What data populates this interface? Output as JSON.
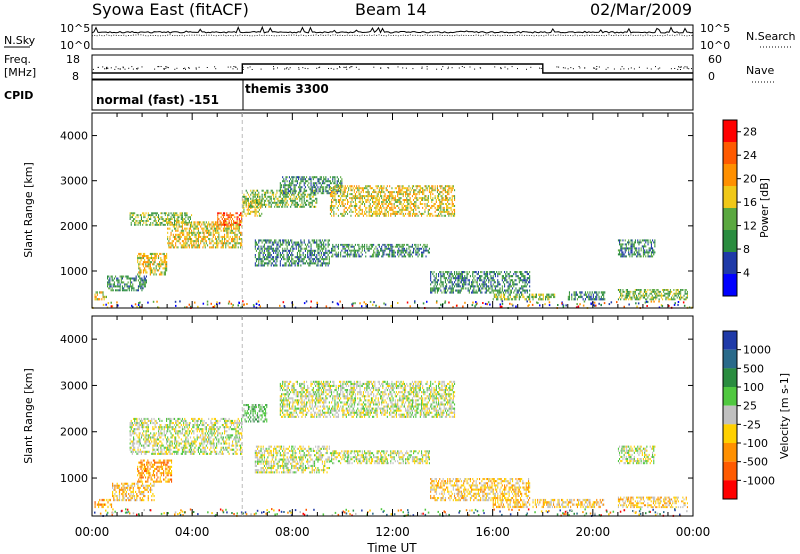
{
  "header": {
    "title_left": "Syowa East (fitACF)",
    "title_center": "Beam 14",
    "title_right": "02/Mar/2009"
  },
  "nsky_panel": {
    "label": "N.Sky",
    "right_label": "N.Search",
    "tick_top": "10^5",
    "tick_bottom": "10^0",
    "right_tick_top": "10^5",
    "right_tick_bottom": "10^0"
  },
  "freq_panel": {
    "label_line1": "Freq.",
    "label_line2": "[MHz]",
    "tick_top": "18",
    "tick_bottom": "8",
    "right_label": "Nave",
    "right_tick_top": "60",
    "right_tick_bottom": "0"
  },
  "cpid_panel": {
    "label": "CPID",
    "segments": [
      {
        "start_hour": 0,
        "end_hour": 6,
        "text": "normal (fast) -151"
      },
      {
        "start_hour": 6,
        "end_hour": 24,
        "text": "themis 3300"
      }
    ]
  },
  "colors": {
    "power": [
      "#0000ff",
      "#1f3aa8",
      "#2a8c3f",
      "#5aa840",
      "#f0c818",
      "#ff9000",
      "#ff5a00",
      "#ff0000"
    ],
    "velocity": [
      "#1f3aa8",
      "#2a6a8a",
      "#2a8c3f",
      "#50c840",
      "#c0c0c0",
      "#ffd000",
      "#ff9000",
      "#ff5a00",
      "#ff0000"
    ]
  },
  "chart_data": [
    {
      "type": "heatmap",
      "name": "power",
      "ylabel": "Slant Range [km]",
      "ylim": [
        180,
        4500
      ],
      "xlim": [
        0,
        24
      ],
      "yticks": [
        1000,
        2000,
        3000,
        4000
      ],
      "colorbar": {
        "label": "Power [dB]",
        "ticks": [
          "4",
          "8",
          "12",
          "16",
          "20",
          "24",
          "28"
        ],
        "range": [
          0,
          30
        ]
      },
      "regions": [
        {
          "t0": 0.1,
          "t1": 0.6,
          "r0": 350,
          "r1": 550,
          "level": 4
        },
        {
          "t0": 0.6,
          "t1": 2.2,
          "r0": 550,
          "r1": 900,
          "level": 2
        },
        {
          "t0": 1.8,
          "t1": 3.0,
          "r0": 900,
          "r1": 1400,
          "level": 4
        },
        {
          "t0": 1.5,
          "t1": 4.0,
          "r0": 2000,
          "r1": 2300,
          "level": 3
        },
        {
          "t0": 3.0,
          "t1": 6.0,
          "r0": 1500,
          "r1": 2100,
          "level": 4
        },
        {
          "t0": 5.0,
          "t1": 6.0,
          "r0": 2000,
          "r1": 2300,
          "level": 6
        },
        {
          "t0": 6.0,
          "t1": 6.8,
          "r0": 2200,
          "r1": 2600,
          "level": 4
        },
        {
          "t0": 6.5,
          "t1": 9.5,
          "r0": 1100,
          "r1": 1700,
          "level": 2
        },
        {
          "t0": 6.0,
          "t1": 9.0,
          "r0": 2400,
          "r1": 2800,
          "level": 3
        },
        {
          "t0": 7.5,
          "t1": 10.0,
          "r0": 2700,
          "r1": 3100,
          "level": 2
        },
        {
          "t0": 9.5,
          "t1": 14.5,
          "r0": 2200,
          "r1": 2900,
          "level": 4
        },
        {
          "t0": 9.5,
          "t1": 13.5,
          "r0": 1300,
          "r1": 1600,
          "level": 2
        },
        {
          "t0": 13.5,
          "t1": 17.5,
          "r0": 500,
          "r1": 1000,
          "level": 2
        },
        {
          "t0": 16.0,
          "t1": 18.5,
          "r0": 350,
          "r1": 500,
          "level": 3
        },
        {
          "t0": 19.0,
          "t1": 20.5,
          "r0": 350,
          "r1": 550,
          "level": 2
        },
        {
          "t0": 21.0,
          "t1": 22.5,
          "r0": 1300,
          "r1": 1700,
          "level": 2
        },
        {
          "t0": 21.0,
          "t1": 23.8,
          "r0": 350,
          "r1": 600,
          "level": 3
        }
      ]
    },
    {
      "type": "heatmap",
      "name": "velocity",
      "ylabel": "Slant Range [km]",
      "xlabel": "Time UT",
      "ylim": [
        180,
        4500
      ],
      "xlim": [
        0,
        24
      ],
      "yticks": [
        1000,
        2000,
        3000,
        4000
      ],
      "xticks": [
        "00:00",
        "04:00",
        "08:00",
        "12:00",
        "16:00",
        "20:00",
        "00:00"
      ],
      "colorbar": {
        "label": "Velocity [m s-1]",
        "ticks": [
          "1000",
          "500",
          "100",
          "25",
          "-25",
          "-100",
          "-500",
          "-1000"
        ]
      },
      "regions": [
        {
          "t0": 0.1,
          "t1": 0.8,
          "r0": 350,
          "r1": 550,
          "level": 6
        },
        {
          "t0": 0.8,
          "t1": 2.5,
          "r0": 500,
          "r1": 900,
          "level": 5
        },
        {
          "t0": 1.8,
          "t1": 3.2,
          "r0": 900,
          "r1": 1400,
          "level": 6
        },
        {
          "t0": 1.5,
          "t1": 6.0,
          "r0": 1500,
          "r1": 2300,
          "level": 4
        },
        {
          "t0": 6.0,
          "t1": 7.0,
          "r0": 2200,
          "r1": 2600,
          "level": 3
        },
        {
          "t0": 6.5,
          "t1": 9.5,
          "r0": 1100,
          "r1": 1700,
          "level": 4
        },
        {
          "t0": 7.5,
          "t1": 14.5,
          "r0": 2300,
          "r1": 3100,
          "level": 4
        },
        {
          "t0": 9.5,
          "t1": 13.5,
          "r0": 1300,
          "r1": 1600,
          "level": 4
        },
        {
          "t0": 13.5,
          "t1": 17.5,
          "r0": 500,
          "r1": 1000,
          "level": 5
        },
        {
          "t0": 16.0,
          "t1": 20.5,
          "r0": 350,
          "r1": 550,
          "level": 5
        },
        {
          "t0": 21.0,
          "t1": 22.5,
          "r0": 1300,
          "r1": 1700,
          "level": 4
        },
        {
          "t0": 21.0,
          "t1": 23.8,
          "r0": 350,
          "r1": 600,
          "level": 5
        }
      ]
    }
  ]
}
